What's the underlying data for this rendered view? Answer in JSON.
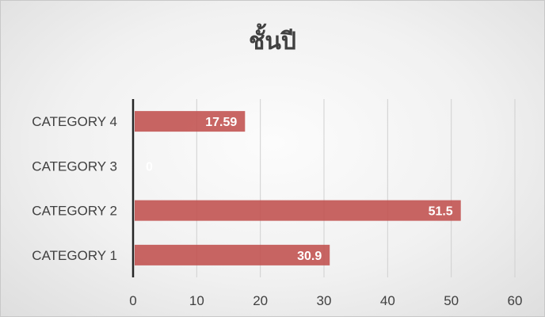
{
  "chart_data": {
    "type": "bar",
    "orientation": "horizontal",
    "title": "ชั้นปี",
    "categories": [
      "CATEGORY 1",
      "CATEGORY 2",
      "CATEGORY 3",
      "CATEGORY 4"
    ],
    "values": [
      30.9,
      51.5,
      0,
      17.59
    ],
    "value_labels": [
      "30.9",
      "51.5",
      "0",
      "17.59"
    ],
    "xlim": [
      0,
      60
    ],
    "xticks": [
      "0",
      "10",
      "20",
      "30",
      "40",
      "50",
      "60"
    ],
    "grid": "vertical",
    "legend": "none",
    "bar_color": "#c0504d"
  }
}
